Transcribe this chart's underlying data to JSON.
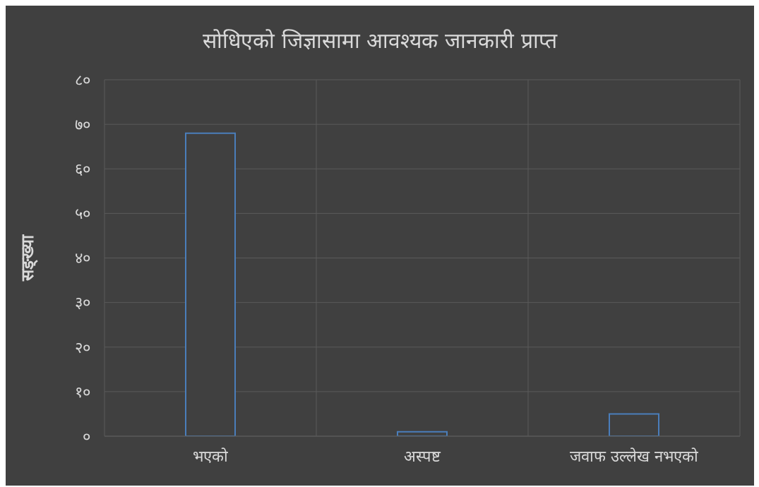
{
  "chart_data": {
    "type": "bar",
    "title": "सोधिएको जिज्ञासामा आवश्यक जानकारी प्राप्त",
    "ylabel": "सङ्ख्या",
    "categories": [
      "भएको",
      "अस्पष्ट",
      "जवाफ उल्लेख नभएको"
    ],
    "values": [
      68,
      1,
      5
    ],
    "color": "#4a7ebb",
    "ylim": [
      0,
      80
    ],
    "yticks": [
      {
        "value": 0,
        "label": "०"
      },
      {
        "value": 10,
        "label": "१०"
      },
      {
        "value": 20,
        "label": "२०"
      },
      {
        "value": 30,
        "label": "३०"
      },
      {
        "value": 40,
        "label": "४०"
      },
      {
        "value": 50,
        "label": "५०"
      },
      {
        "value": 60,
        "label": "६०"
      },
      {
        "value": 70,
        "label": "७०"
      },
      {
        "value": 80,
        "label": "८०"
      }
    ],
    "grid": true
  }
}
